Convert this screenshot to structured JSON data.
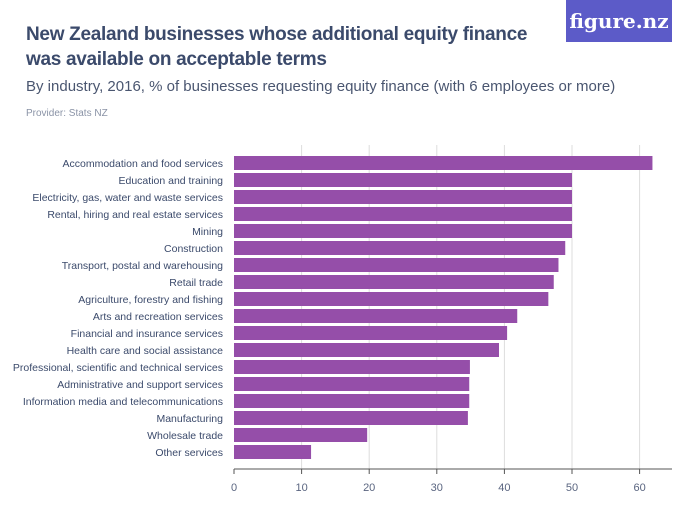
{
  "header": {
    "title": "New Zealand businesses whose additional equity finance was available on acceptable terms",
    "subtitle": "By industry, 2016, % of businesses requesting equity finance (with 6 employees or more)",
    "provider": "Provider: Stats NZ",
    "logo": "figure.nz"
  },
  "chart_data": {
    "type": "bar",
    "orientation": "horizontal",
    "title": "New Zealand businesses whose additional equity finance was available on acceptable terms",
    "subtitle": "By industry, 2016, % of businesses requesting equity finance (with 6 employees or more)",
    "categories": [
      "Accommodation and food services",
      "Education and training",
      "Electricity, gas, water and waste services",
      "Rental, hiring and real estate services",
      "Mining",
      "Construction",
      "Transport, postal and warehousing",
      "Retail trade",
      "Agriculture, forestry and fishing",
      "Arts and recreation services",
      "Financial and insurance services",
      "Health care and social assistance",
      "Professional, scientific and technical services",
      "Administrative and support services",
      "Information media and telecommunications",
      "Manufacturing",
      "Wholesale trade",
      "Other services"
    ],
    "values": [
      61.9,
      50,
      50,
      50,
      50,
      49.0,
      48.0,
      47.3,
      46.5,
      41.9,
      40.4,
      39.2,
      34.9,
      34.8,
      34.8,
      34.6,
      19.7,
      11.4
    ],
    "xlim": [
      0,
      64
    ],
    "xticks": [
      0,
      10,
      20,
      30,
      40,
      50,
      60
    ],
    "grid": true,
    "color": "#954ea9"
  }
}
